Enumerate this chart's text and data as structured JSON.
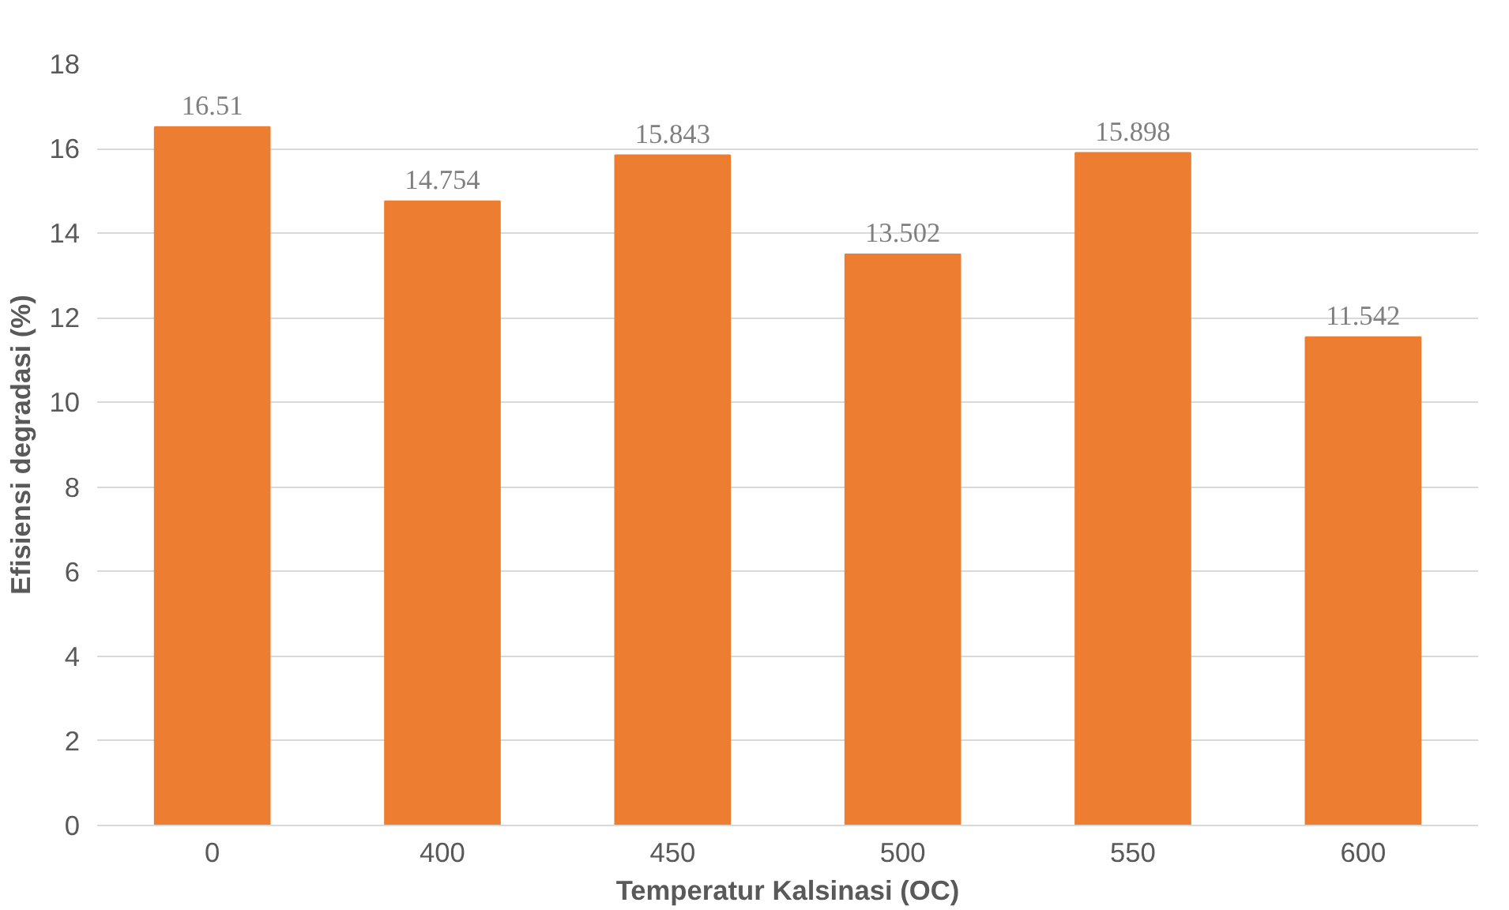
{
  "chart_data": {
    "type": "bar",
    "xlabel": "Temperatur Kalsinasi (OC)",
    "ylabel": "Efisiensi degradasi (%)",
    "categories": [
      "0",
      "400",
      "450",
      "500",
      "550",
      "600"
    ],
    "values": [
      16.51,
      14.754,
      15.843,
      13.502,
      15.898,
      11.542
    ],
    "color": "#ed7d31",
    "ylim": [
      0,
      18
    ],
    "yticks": [
      0,
      2,
      4,
      6,
      8,
      10,
      12,
      14,
      16,
      18
    ],
    "grid": "y",
    "data_labels": true
  }
}
